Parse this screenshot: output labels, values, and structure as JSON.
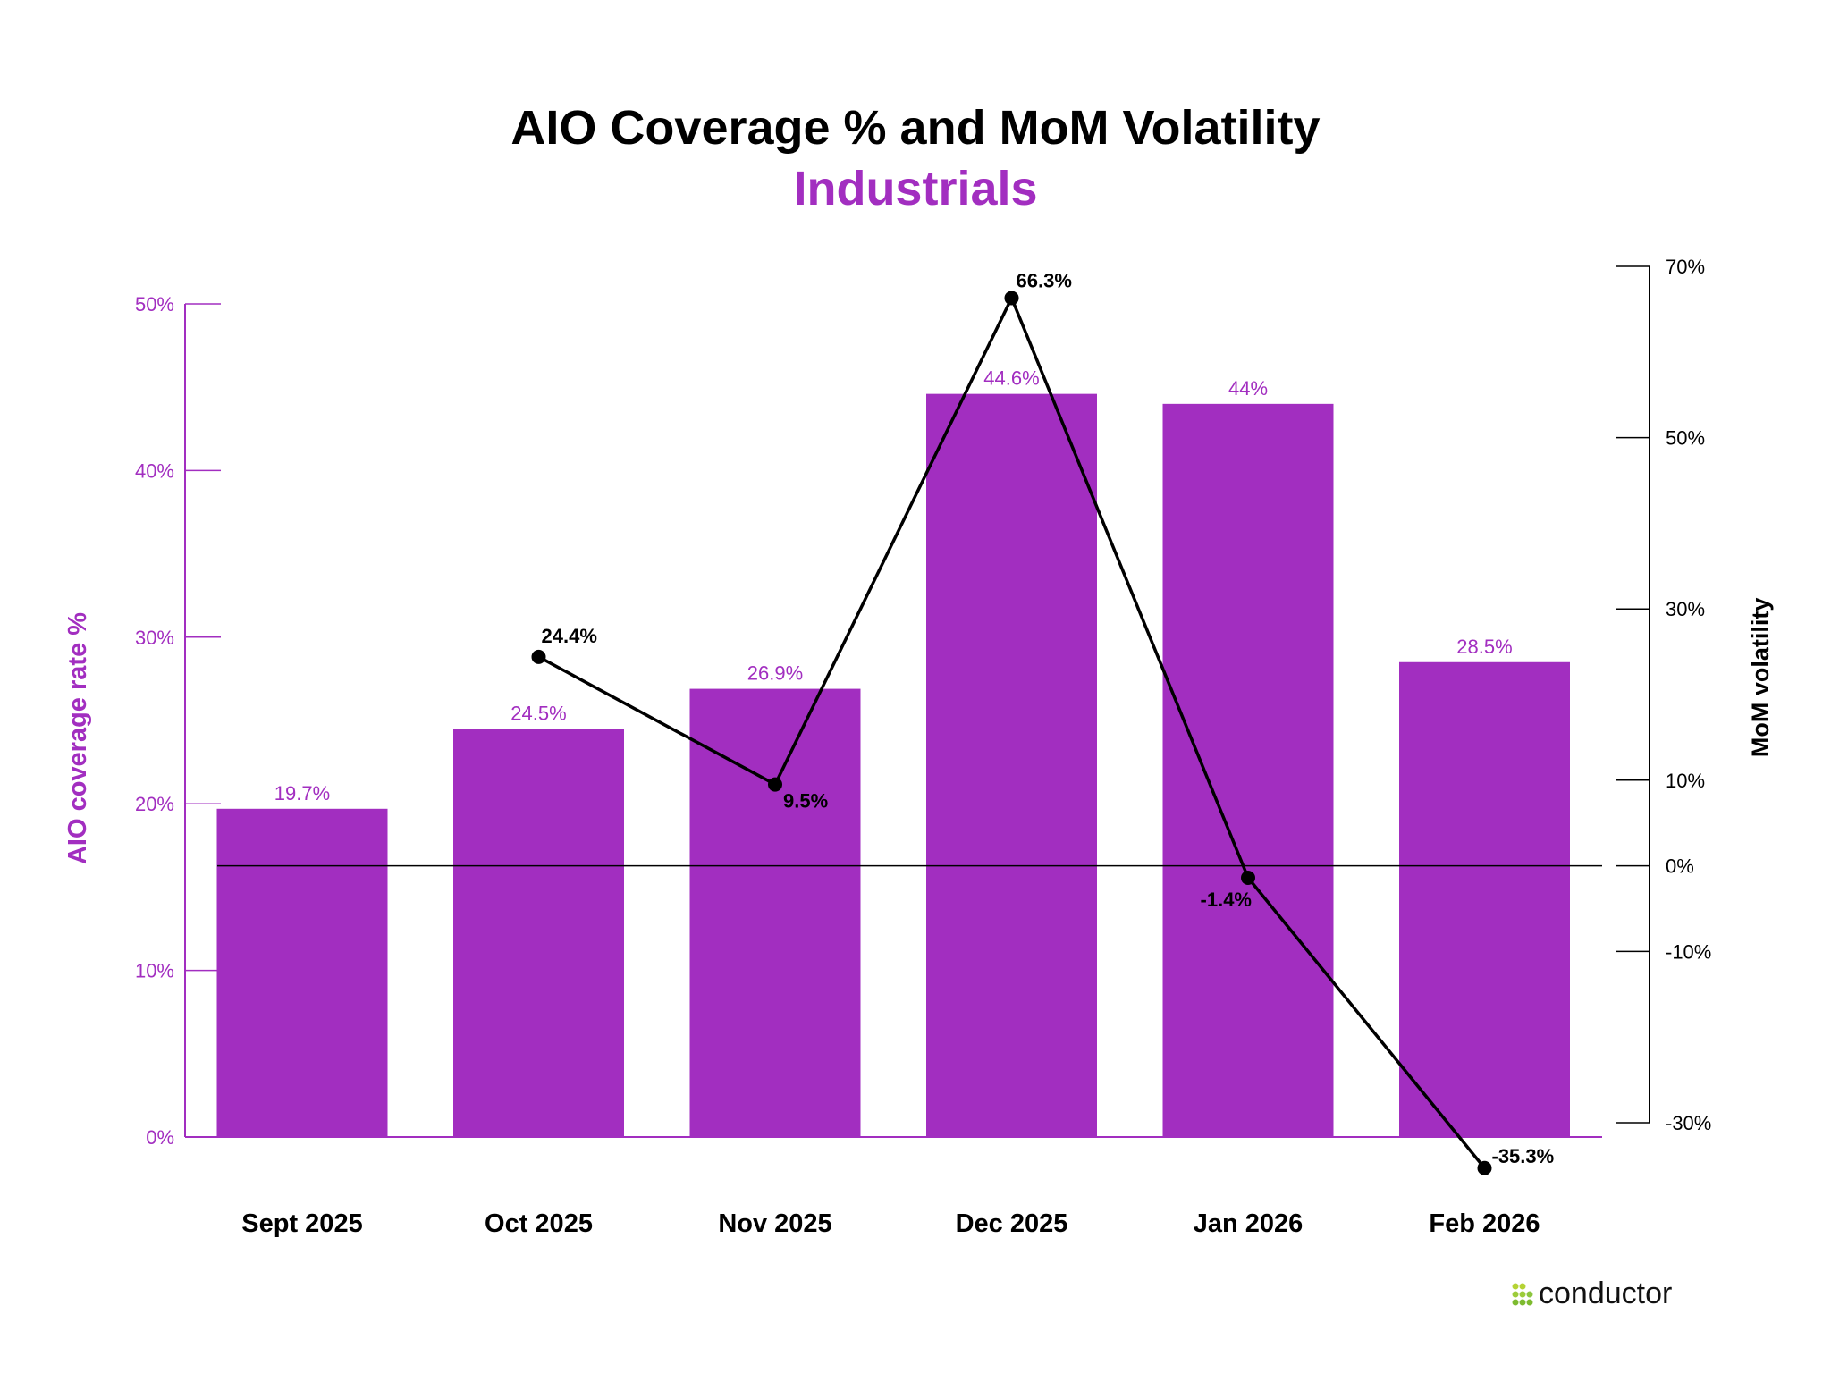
{
  "chart_data": {
    "type": "bar+line",
    "title": "AIO Coverage % and MoM Volatility",
    "subtitle": "Industrials",
    "categories": [
      "Sept 2025",
      "Oct 2025",
      "Nov 2025",
      "Dec 2025",
      "Jan 2026",
      "Feb 2026"
    ],
    "bar_series": {
      "values": [
        19.7,
        24.5,
        26.9,
        44.6,
        44.0,
        28.5
      ],
      "labels": [
        "19.7%",
        "24.5%",
        "26.9%",
        "44.6%",
        "44%",
        "28.5%"
      ],
      "color": "#a22ec0",
      "axis": "left"
    },
    "line_series": {
      "values": [
        null,
        24.4,
        9.5,
        66.3,
        -1.4,
        -35.3
      ],
      "labels": [
        "",
        "24.4%",
        "9.5%",
        "66.3%",
        "-1.4%",
        "-35.3%"
      ],
      "color": "#000000",
      "axis": "right"
    },
    "left_axis": {
      "label": "AIO coverage rate %",
      "ylim": [
        0,
        50
      ],
      "ticks": [
        0,
        10,
        20,
        30,
        40,
        50
      ],
      "tick_labels": [
        "0%",
        "10%",
        "20%",
        "30%",
        "40%",
        "50%"
      ],
      "color": "#a22ec0"
    },
    "right_axis": {
      "label": "MoM volatility",
      "ylim": [
        -30,
        70
      ],
      "ticks": [
        70,
        50,
        30,
        10,
        0,
        -10,
        -30
      ],
      "tick_labels": [
        "70%",
        "50%",
        "30%",
        "10%",
        "0%",
        "-10%",
        "-30%"
      ],
      "color": "#000000"
    },
    "grid": false,
    "legend": "none"
  },
  "brand": {
    "logo_text": "conductor",
    "logo_color": "#8cc63f"
  }
}
